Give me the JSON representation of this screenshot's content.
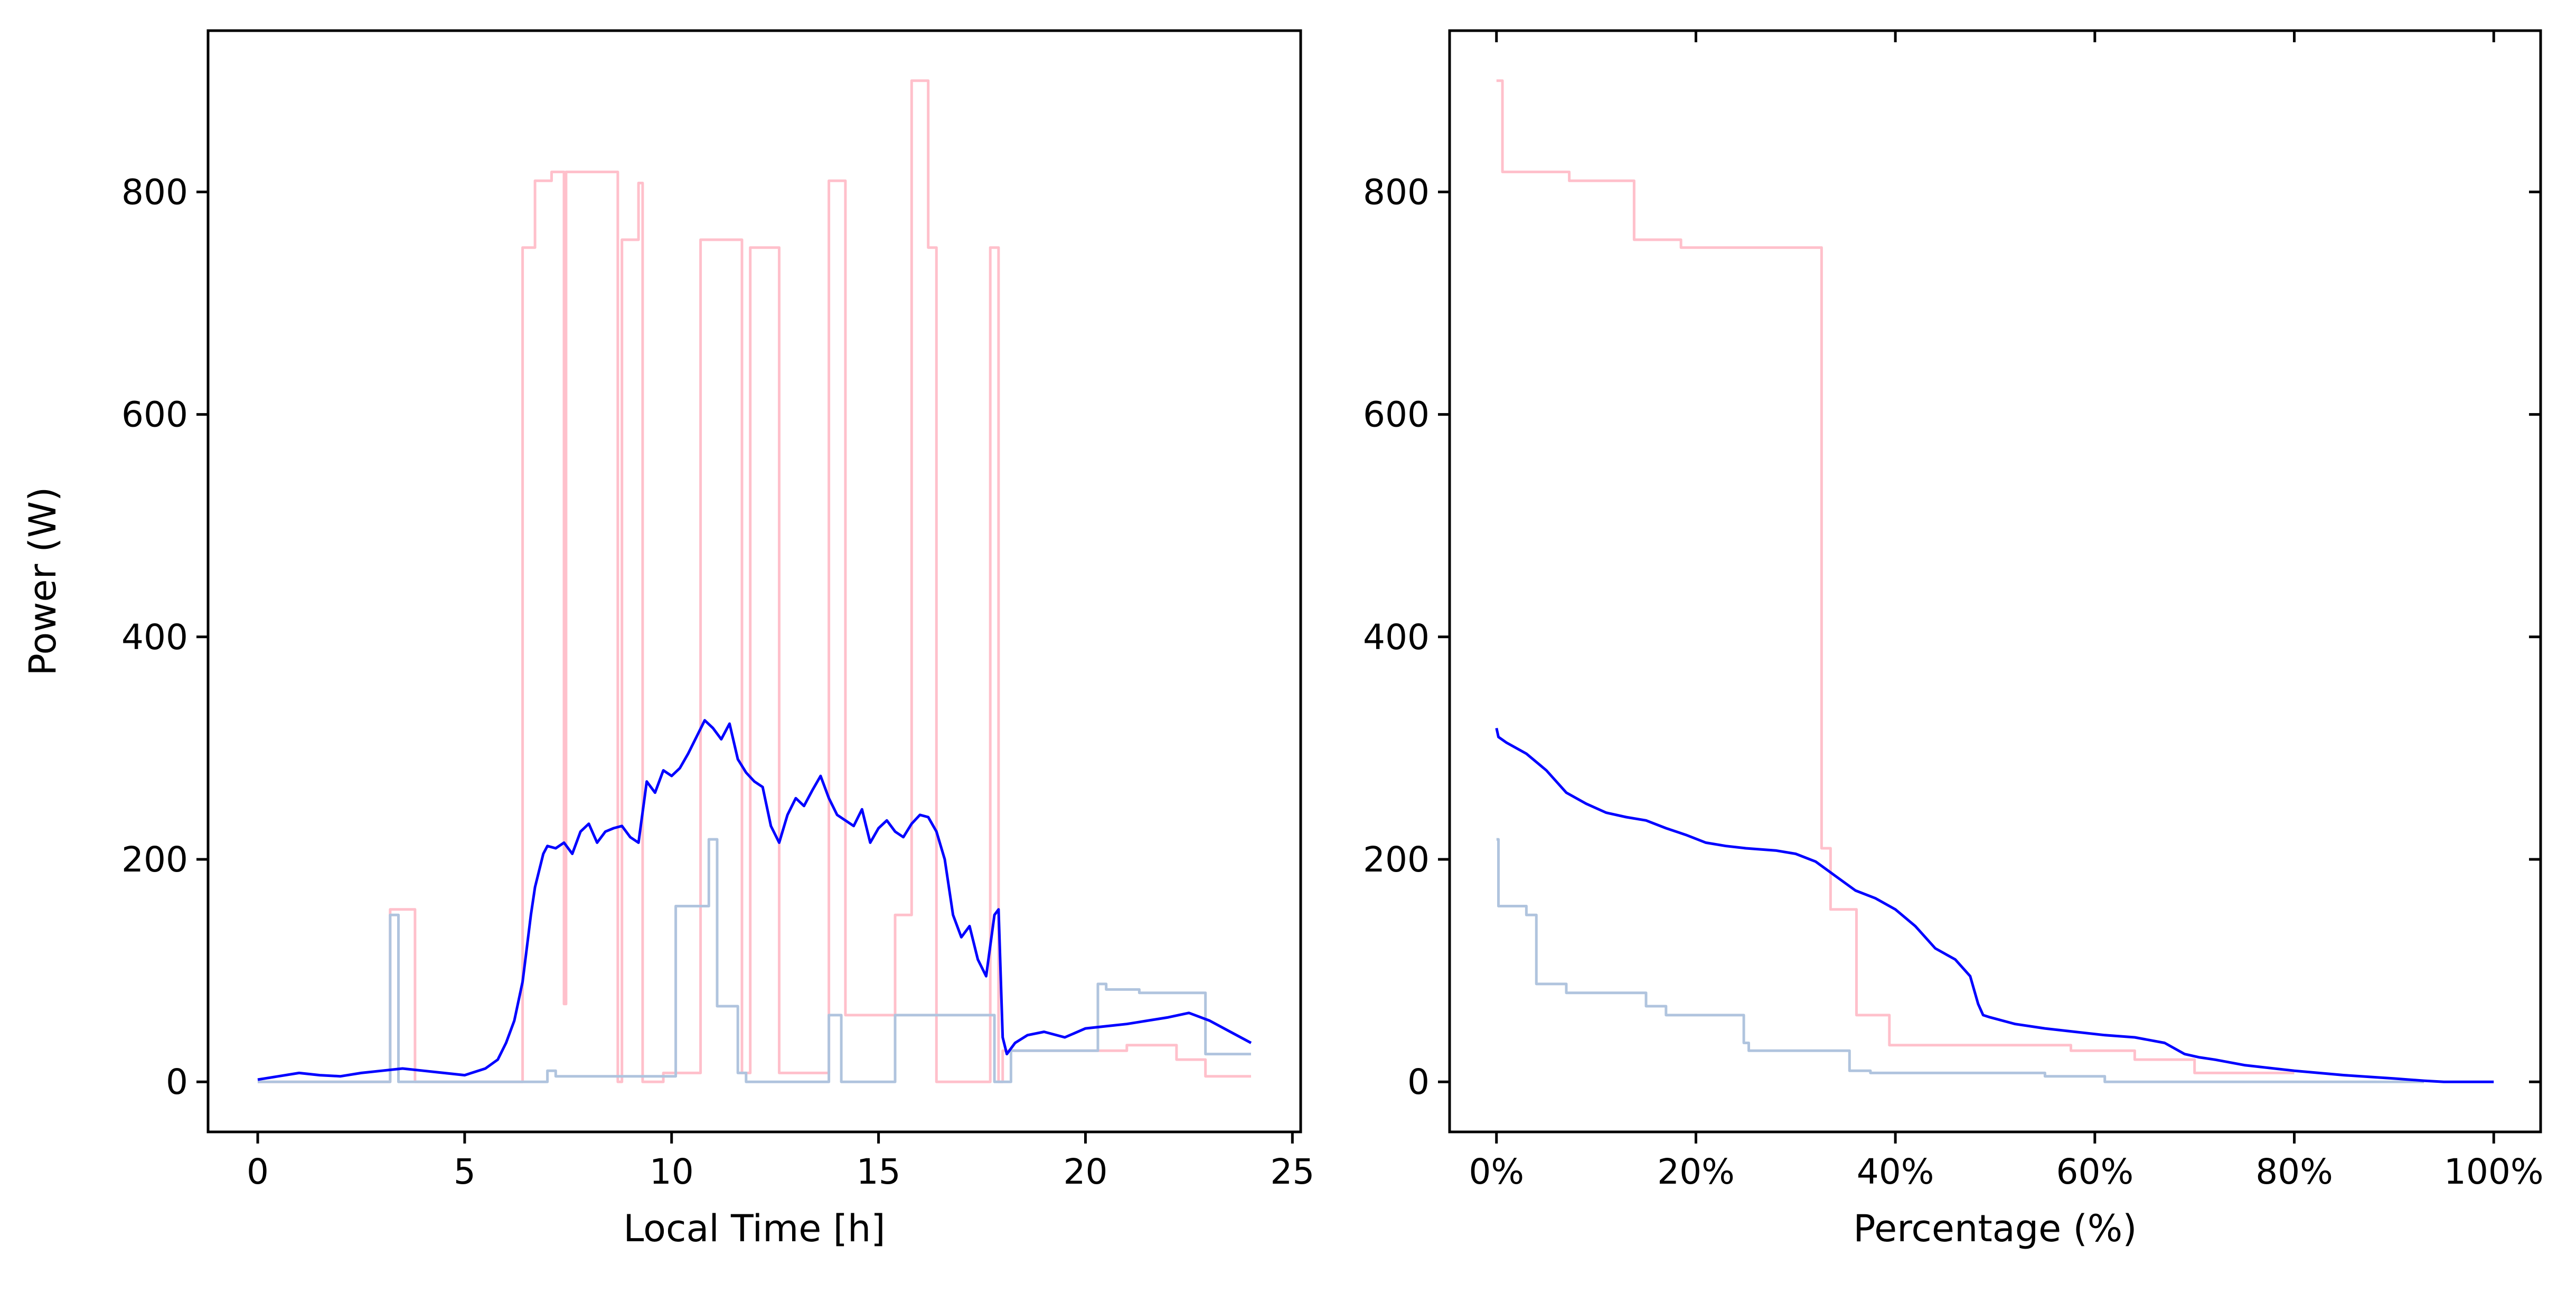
{
  "chart_data": [
    {
      "type": "line",
      "title": "",
      "xlabel": "Local Time [h]",
      "ylabel": "Power (W)",
      "xlim": [
        -1.2,
        25.2
      ],
      "ylim": [
        -45,
        945
      ],
      "xticks": [
        0,
        5,
        10,
        15,
        20,
        25
      ],
      "xtick_labels": [
        "0",
        "5",
        "10",
        "15",
        "20",
        "25"
      ],
      "yticks": [
        0,
        200,
        400,
        600,
        800
      ],
      "ytick_labels": [
        "0",
        "200",
        "400",
        "600",
        "800"
      ],
      "grid": false,
      "series": [
        {
          "color": "#ffc0cb",
          "step": true,
          "x": [
            0,
            3.2,
            3.2,
            3.8,
            3.8,
            5.4,
            5.4,
            6.4,
            6.4,
            6.7,
            6.7,
            7.1,
            7.1,
            7.4,
            7.4,
            7.45,
            7.45,
            8.7,
            8.7,
            8.8,
            8.8,
            9.2,
            9.2,
            9.3,
            9.3,
            9.8,
            9.8,
            10.7,
            10.7,
            11.7,
            11.7,
            11.9,
            11.9,
            12.6,
            12.6,
            13.8,
            13.8,
            14.2,
            14.2,
            15.4,
            15.4,
            15.8,
            15.8,
            16.2,
            16.2,
            16.4,
            16.4,
            17.7,
            17.7,
            17.9,
            17.9,
            18.0,
            18.0,
            18.3,
            18.3,
            21.0,
            21.0,
            22.2,
            22.2,
            22.9,
            22.9,
            24.0
          ],
          "y": [
            0,
            0,
            155,
            155,
            0,
            0,
            0,
            0,
            750,
            750,
            810,
            810,
            818,
            818,
            70,
            70,
            818,
            818,
            0,
            0,
            757,
            757,
            808,
            808,
            0,
            0,
            8,
            8,
            757,
            757,
            8,
            8,
            750,
            750,
            8,
            8,
            810,
            810,
            60,
            60,
            150,
            150,
            900,
            900,
            750,
            750,
            0,
            0,
            750,
            750,
            0,
            0,
            28,
            28,
            28,
            28,
            33,
            33,
            20,
            20,
            5,
            5
          ]
        },
        {
          "color": "#b0c4de",
          "step": true,
          "x": [
            0,
            3.2,
            3.2,
            3.4,
            3.4,
            7.0,
            7.0,
            7.2,
            7.2,
            10.1,
            10.1,
            10.9,
            10.9,
            11.1,
            11.1,
            11.6,
            11.6,
            11.8,
            11.8,
            13.8,
            13.8,
            14.1,
            14.1,
            15.4,
            15.4,
            16.2,
            16.2,
            17.8,
            17.8,
            18.2,
            18.2,
            20.3,
            20.3,
            20.5,
            20.5,
            21.3,
            21.3,
            22.9,
            22.9,
            24.0
          ],
          "y": [
            0,
            0,
            150,
            150,
            0,
            0,
            10,
            10,
            5,
            5,
            158,
            158,
            218,
            218,
            68,
            68,
            8,
            8,
            0,
            0,
            60,
            60,
            0,
            0,
            60,
            60,
            60,
            60,
            0,
            0,
            28,
            28,
            88,
            88,
            83,
            83,
            80,
            80,
            25,
            25
          ]
        },
        {
          "color": "#0000ff",
          "step": false,
          "x": [
            0,
            0.5,
            1,
            1.5,
            2,
            2.5,
            3,
            3.5,
            4,
            4.5,
            5,
            5.5,
            5.8,
            6.0,
            6.2,
            6.4,
            6.5,
            6.6,
            6.7,
            6.9,
            7.0,
            7.2,
            7.4,
            7.6,
            7.8,
            8.0,
            8.2,
            8.4,
            8.6,
            8.8,
            9.0,
            9.2,
            9.4,
            9.6,
            9.8,
            10.0,
            10.2,
            10.4,
            10.6,
            10.8,
            11.0,
            11.2,
            11.4,
            11.6,
            11.8,
            12.0,
            12.2,
            12.4,
            12.6,
            12.8,
            13.0,
            13.2,
            13.4,
            13.6,
            13.8,
            14.0,
            14.2,
            14.4,
            14.6,
            14.8,
            15.0,
            15.2,
            15.4,
            15.6,
            15.8,
            16.0,
            16.2,
            16.4,
            16.6,
            16.8,
            17.0,
            17.2,
            17.4,
            17.6,
            17.8,
            17.9,
            18.0,
            18.1,
            18.3,
            18.6,
            19.0,
            19.5,
            20.0,
            20.5,
            21.0,
            21.5,
            22.0,
            22.5,
            23.0,
            23.5,
            24.0
          ],
          "y": [
            2,
            5,
            8,
            6,
            5,
            8,
            10,
            12,
            10,
            8,
            6,
            12,
            20,
            35,
            55,
            90,
            120,
            150,
            175,
            205,
            212,
            210,
            215,
            205,
            225,
            232,
            215,
            225,
            228,
            230,
            220,
            215,
            270,
            260,
            280,
            275,
            282,
            295,
            310,
            325,
            318,
            308,
            322,
            290,
            278,
            270,
            265,
            230,
            215,
            240,
            255,
            248,
            262,
            275,
            255,
            240,
            235,
            230,
            245,
            215,
            228,
            235,
            225,
            220,
            232,
            240,
            238,
            225,
            200,
            150,
            130,
            140,
            110,
            95,
            150,
            155,
            40,
            25,
            35,
            42,
            45,
            40,
            48,
            50,
            52,
            55,
            58,
            62,
            55,
            45,
            35
          ]
        }
      ]
    },
    {
      "type": "line",
      "title": "",
      "xlabel": "Percentage (%)",
      "ylabel": "",
      "xlim": [
        -4.7,
        104.7
      ],
      "ylim": [
        -45,
        945
      ],
      "xticks": [
        0,
        20,
        40,
        60,
        80,
        100
      ],
      "xtick_labels": [
        "0%",
        "20%",
        "40%",
        "60%",
        "80%",
        "100%"
      ],
      "yticks": [
        0,
        200,
        400,
        600,
        800
      ],
      "ytick_labels": [
        "0",
        "200",
        "400",
        "600",
        "800"
      ],
      "grid": false,
      "series": [
        {
          "color": "#ffc0cb",
          "step": true,
          "x": [
            0,
            0.6,
            0.6,
            7.3,
            7.3,
            13.8,
            13.8,
            18.5,
            18.5,
            32.6,
            32.6,
            33.5,
            33.5,
            36.1,
            36.1,
            39.4,
            39.4,
            57.6,
            57.6,
            64.0,
            64.0,
            70.0,
            70.0,
            80.0
          ],
          "y": [
            900,
            900,
            818,
            818,
            810,
            810,
            757,
            757,
            750,
            750,
            210,
            210,
            155,
            155,
            60,
            60,
            33,
            33,
            28,
            28,
            20,
            20,
            8,
            8
          ]
        },
        {
          "color": "#b0c4de",
          "step": true,
          "x": [
            0,
            0.2,
            0.2,
            3.0,
            3.0,
            4.0,
            4.0,
            7.0,
            7.0,
            15.0,
            15.0,
            17.0,
            17.0,
            24.8,
            24.8,
            25.3,
            25.3,
            35.4,
            35.4,
            37.5,
            37.5,
            55.0,
            55.0,
            61.0,
            61.0,
            93.0
          ],
          "y": [
            218,
            218,
            158,
            158,
            150,
            150,
            88,
            88,
            80,
            80,
            68,
            68,
            60,
            60,
            35,
            35,
            28,
            28,
            10,
            10,
            8,
            8,
            5,
            5,
            0,
            0
          ]
        },
        {
          "color": "#0000ff",
          "step": false,
          "x": [
            0,
            0.2,
            1,
            3,
            5,
            7,
            9,
            11,
            13,
            15,
            17,
            19,
            21,
            23,
            25,
            28,
            30,
            32,
            34,
            36,
            38,
            40,
            42,
            44,
            46,
            47.5,
            48.3,
            48.8,
            49.5,
            52,
            55,
            58,
            61,
            64,
            67,
            69,
            70.5,
            72,
            75,
            80,
            85,
            90,
            93,
            95,
            100
          ],
          "y": [
            318,
            310,
            305,
            295,
            280,
            260,
            250,
            242,
            238,
            235,
            228,
            222,
            215,
            212,
            210,
            208,
            205,
            198,
            185,
            172,
            165,
            155,
            140,
            120,
            110,
            95,
            70,
            60,
            58,
            52,
            48,
            45,
            42,
            40,
            35,
            25,
            22,
            20,
            15,
            10,
            6,
            3,
            1,
            0,
            0
          ]
        }
      ]
    }
  ]
}
